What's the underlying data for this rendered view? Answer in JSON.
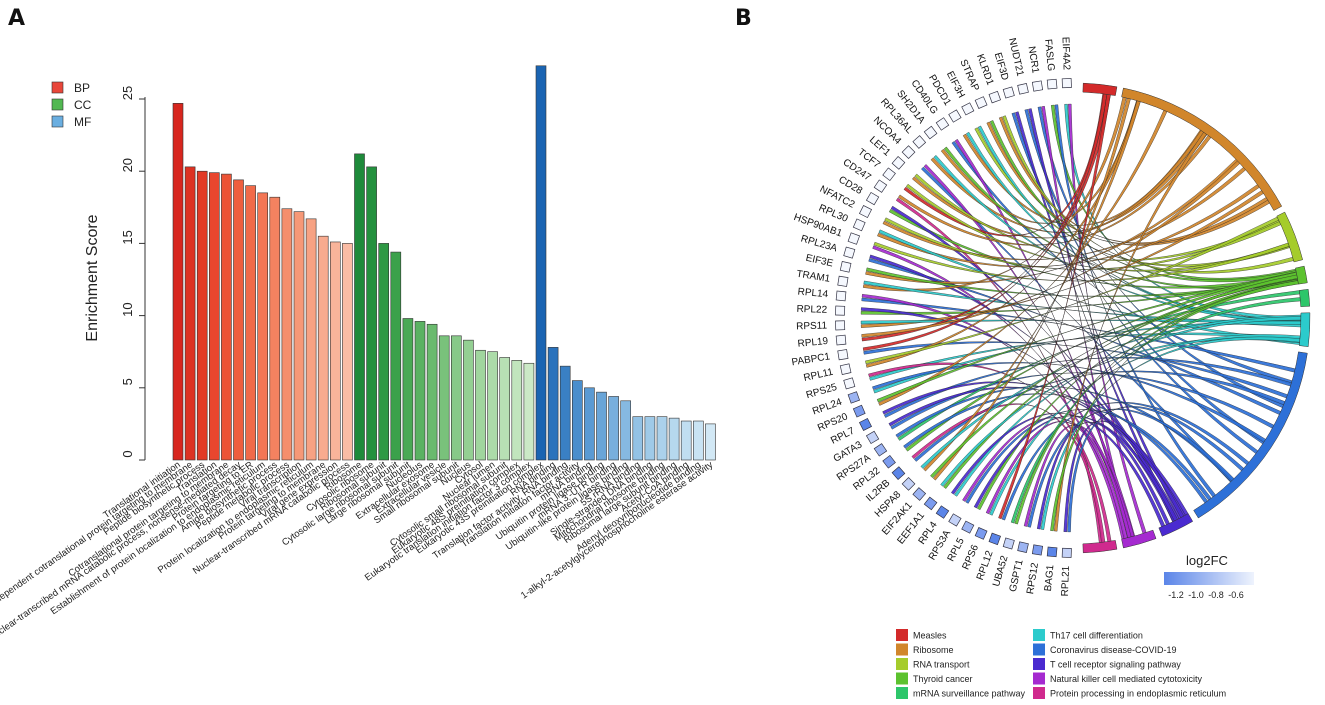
{
  "panels": {
    "a": "A",
    "b": "B"
  },
  "chart_data": [
    {
      "type": "bar",
      "title": "",
      "ylabel": "Enrichment Score",
      "xlabel": "",
      "ylim": [
        0,
        27.5
      ],
      "yticks": [
        0,
        5,
        10,
        15,
        20,
        25
      ],
      "legend": {
        "placement": "top-left",
        "entries": [
          {
            "name": "BP",
            "color": "#e8463a"
          },
          {
            "name": "CC",
            "color": "#52b852"
          },
          {
            "name": "MF",
            "color": "#6aaee0"
          }
        ]
      },
      "categories": [
        {
          "label": "Translational initiation",
          "value": 24.7,
          "group": "BP",
          "color": "#d7261e"
        },
        {
          "label": "SRP-dependent cotranslational protein targeting to membrane",
          "value": 20.3,
          "group": "BP",
          "color": "#dd3222"
        },
        {
          "label": "Peptide biosynthetic process",
          "value": 20.0,
          "group": "BP",
          "color": "#e23a26"
        },
        {
          "label": "Translation",
          "value": 19.9,
          "group": "BP",
          "color": "#e8462e"
        },
        {
          "label": "Cotranslational protein targeting to membrane",
          "value": 19.8,
          "group": "BP",
          "color": "#ec5336"
        },
        {
          "label": "Nuclear-transcribed mRNA catabolic process, nonsense-mediated decay",
          "value": 19.4,
          "group": "BP",
          "color": "#ef5e3e"
        },
        {
          "label": "Protein targeting to ER",
          "value": 19.0,
          "group": "BP",
          "color": "#f16a49"
        },
        {
          "label": "Establishment of protein localization to endoplasmic reticulum",
          "value": 18.5,
          "group": "BP",
          "color": "#f37655"
        },
        {
          "label": "Amide biosynthetic process",
          "value": 18.2,
          "group": "BP",
          "color": "#f48260"
        },
        {
          "label": "Peptide metabolic process",
          "value": 17.4,
          "group": "BP",
          "color": "#f58e6c"
        },
        {
          "label": "Viral transcription",
          "value": 17.2,
          "group": "BP",
          "color": "#f69877"
        },
        {
          "label": "Protein localization to endoplasmic reticulum",
          "value": 16.7,
          "group": "BP",
          "color": "#f7a283"
        },
        {
          "label": "Protein targeting to membrane",
          "value": 15.5,
          "group": "BP",
          "color": "#f8ab8f"
        },
        {
          "label": "Viral gene expression",
          "value": 15.1,
          "group": "BP",
          "color": "#f9b49a"
        },
        {
          "label": "Nuclear-transcribed mRNA catabolic process",
          "value": 15.0,
          "group": "BP",
          "color": "#fabca5"
        },
        {
          "label": "Ribosome",
          "value": 21.2,
          "group": "CC",
          "color": "#1e8a3a"
        },
        {
          "label": "Cytosolic ribosome",
          "value": 20.3,
          "group": "CC",
          "color": "#24913e"
        },
        {
          "label": "Ribosomal subunit",
          "value": 15.0,
          "group": "CC",
          "color": "#2e9944"
        },
        {
          "label": "Cytosolic large ribosomal subunit",
          "value": 14.4,
          "group": "CC",
          "color": "#3ba14b"
        },
        {
          "label": "Large ribosomal subunit",
          "value": 9.8,
          "group": "CC",
          "color": "#4aa955"
        },
        {
          "label": "Nucleolus",
          "value": 9.6,
          "group": "CC",
          "color": "#5ab262"
        },
        {
          "label": "Extracellular exosome",
          "value": 9.4,
          "group": "CC",
          "color": "#6aba6e"
        },
        {
          "label": "Extracellular vesicle",
          "value": 8.6,
          "group": "CC",
          "color": "#79c27b"
        },
        {
          "label": "Small ribosomal subunit",
          "value": 8.6,
          "group": "CC",
          "color": "#87c988"
        },
        {
          "label": "Nucleus",
          "value": 8.3,
          "group": "CC",
          "color": "#94cf93"
        },
        {
          "label": "Cytosol",
          "value": 7.6,
          "group": "CC",
          "color": "#a0d59e"
        },
        {
          "label": "Nuclear lumen",
          "value": 7.5,
          "group": "CC",
          "color": "#acdba9"
        },
        {
          "label": "Cytosolic small ribosomal subunit",
          "value": 7.1,
          "group": "CC",
          "color": "#b7e0b4"
        },
        {
          "label": "Eukaryotic 48S preinitiation complex",
          "value": 6.9,
          "group": "CC",
          "color": "#c1e5bd"
        },
        {
          "label": "Eukaryotic translation initiation factor 3 complex",
          "value": 6.7,
          "group": "CC",
          "color": "#cbe9c6"
        },
        {
          "label": "Eukaryotic 43S preinitiation complex",
          "value": 27.3,
          "group": "MF",
          "color": "#1a64b2"
        },
        {
          "label": "RNA binding",
          "value": 7.8,
          "group": "MF",
          "color": "#2a72bc"
        },
        {
          "label": "Translation factor activity, RNA binding",
          "value": 6.5,
          "group": "MF",
          "color": "#3a80c4"
        },
        {
          "label": "Translation initiation factor activity",
          "value": 5.5,
          "group": "MF",
          "color": "#4a8ecc"
        },
        {
          "label": "mRNA binding",
          "value": 5.0,
          "group": "MF",
          "color": "#5a9ad3"
        },
        {
          "label": "Ubiquitin protein ligase binding",
          "value": 4.7,
          "group": "MF",
          "color": "#69a5d8"
        },
        {
          "label": "mRNA 3'-UTR binding",
          "value": 4.4,
          "group": "MF",
          "color": "#78afdd"
        },
        {
          "label": "Ubiquitin-like protein ligase binding",
          "value": 4.1,
          "group": "MF",
          "color": "#86b9e1"
        },
        {
          "label": "5S rRNA binding",
          "value": 3.0,
          "group": "MF",
          "color": "#93c2e5"
        },
        {
          "label": "Single-stranded DNA binding",
          "value": 3.0,
          "group": "MF",
          "color": "#9fcae8"
        },
        {
          "label": "Mitochondrial ribosome binding",
          "value": 3.0,
          "group": "MF",
          "color": "#abd1eb"
        },
        {
          "label": "Ribosomal large subunit binding",
          "value": 2.9,
          "group": "MF",
          "color": "#b6d8ee"
        },
        {
          "label": "Acetyl-CoA binding",
          "value": 2.7,
          "group": "MF",
          "color": "#c0def1"
        },
        {
          "label": "Adenyl deoxyribonucleotide binding",
          "value": 2.7,
          "group": "MF",
          "color": "#c9e3f3"
        },
        {
          "label": "1-alkyl-2-acetylglycerophosphocholine esterase activity",
          "value": 2.5,
          "group": "MF",
          "color": "#d2e8f5"
        }
      ]
    },
    {
      "type": "chord",
      "genes": [
        "EIF4A2",
        "FASLG",
        "NCR1",
        "NUDT21",
        "EIF3D",
        "KLRD1",
        "STRAP",
        "EIF3H",
        "PDCD1",
        "CD40LG",
        "SH2D1A",
        "RPL36AL",
        "NCOA4",
        "LEF1",
        "TCF7",
        "CD247",
        "CD28",
        "NFATC2",
        "RPL30",
        "HSP90AB1",
        "RPL23A",
        "EIF3E",
        "TRAM1",
        "RPL14",
        "RPL22",
        "RPS11",
        "RPL19",
        "PABPC1",
        "RPL11",
        "RPS25",
        "RPL24",
        "RPS20",
        "RPL7",
        "GATA3",
        "RPS27A",
        "RPL32",
        "IL2RB",
        "HSPA8",
        "EIF2AK1",
        "EEF1A1",
        "RPL4",
        "RPS3A",
        "RPL5",
        "RPS6",
        "RPL12",
        "UBA52",
        "GSPT1",
        "RPS12",
        "BAG1",
        "RPL21"
      ],
      "log2fc_legend": {
        "title": "log2FC",
        "ticks": [
          "-1.2",
          "-1.0",
          "-0.8",
          "-0.6"
        ]
      },
      "pathways": [
        {
          "name": "Measles",
          "color": "#d32a2a",
          "size": 2
        },
        {
          "name": "Ribosome",
          "color": "#d1862b",
          "size": 12
        },
        {
          "name": "RNA transport",
          "color": "#a5cc2b",
          "size": 3
        },
        {
          "name": "Thyroid cancer",
          "color": "#5cc22f",
          "size": 1
        },
        {
          "name": "mRNA surveillance pathway",
          "color": "#2dc66a",
          "size": 1
        },
        {
          "name": "Th17 cell differentiation",
          "color": "#2ccbcc",
          "size": 2
        },
        {
          "name": "Coronavirus disease-COVID-19",
          "color": "#2d70d8",
          "size": 12
        },
        {
          "name": "T cell receptor signaling pathway",
          "color": "#4a2ad0",
          "size": 2
        },
        {
          "name": "Natural killer cell mediated cytotoxicity",
          "color": "#a52ad0",
          "size": 2
        },
        {
          "name": "Protein processing in endoplasmic reticulum",
          "color": "#d02a8e",
          "size": 2
        }
      ]
    }
  ]
}
